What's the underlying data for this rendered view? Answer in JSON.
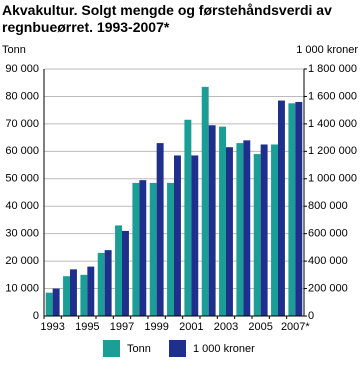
{
  "chart_data": {
    "type": "bar",
    "title": "Akvakultur. Solgt mengde og førstehåndsverdi av regnbueørret. 1993-2007*",
    "y_label": "Tonn",
    "y2_label": "1 000 kroner",
    "categories": [
      "1993",
      null,
      "1995",
      null,
      "1997",
      null,
      "1999",
      null,
      "2001",
      null,
      "2003",
      null,
      "2005",
      null,
      "2007*"
    ],
    "series": [
      {
        "name": "Tonn",
        "color": "#1a9e96",
        "values": [
          8500,
          14500,
          15000,
          23000,
          33000,
          48500,
          48500,
          48500,
          71500,
          83500,
          69000,
          63000,
          59000,
          62500,
          77500
        ]
      },
      {
        "name": "1 000 kroner",
        "color": "#1f2f8c",
        "axis": "y2",
        "values": [
          200000,
          340000,
          360000,
          480000,
          620000,
          990000,
          1260000,
          1170000,
          1170000,
          1390000,
          1230000,
          1280000,
          1250000,
          1570000,
          1560000
        ]
      }
    ],
    "ylim": [
      0,
      90000
    ],
    "yticks": [
      0,
      {
        "value": 10000,
        "label": "10 000"
      },
      {
        "value": 20000,
        "label": "20 000"
      },
      {
        "value": 30000,
        "label": "30 000"
      },
      {
        "value": 40000,
        "label": "40 000"
      },
      {
        "value": 50000,
        "label": "50 000"
      },
      {
        "value": 60000,
        "label": "60 000"
      },
      {
        "value": 70000,
        "label": "70 000"
      },
      {
        "value": 80000,
        "label": "80 000"
      },
      {
        "value": 90000,
        "label": "90 000"
      }
    ],
    "y2lim": [
      0,
      1800000
    ],
    "y2ticks": [
      0,
      {
        "value": 200000,
        "label": "200 000"
      },
      {
        "value": 400000,
        "label": "400 000"
      },
      {
        "value": 600000,
        "label": "600 000"
      },
      {
        "value": 800000,
        "label": "800 000"
      },
      {
        "value": 1000000,
        "label": "1 000 000"
      },
      {
        "value": 1200000,
        "label": "1 200 000"
      },
      {
        "value": 1400000,
        "label": "1 400 000"
      },
      {
        "value": 1600000,
        "label": "1 600 000"
      },
      {
        "value": 1800000,
        "label": "1 800 000"
      }
    ],
    "grid": true,
    "legend": "bottom"
  }
}
